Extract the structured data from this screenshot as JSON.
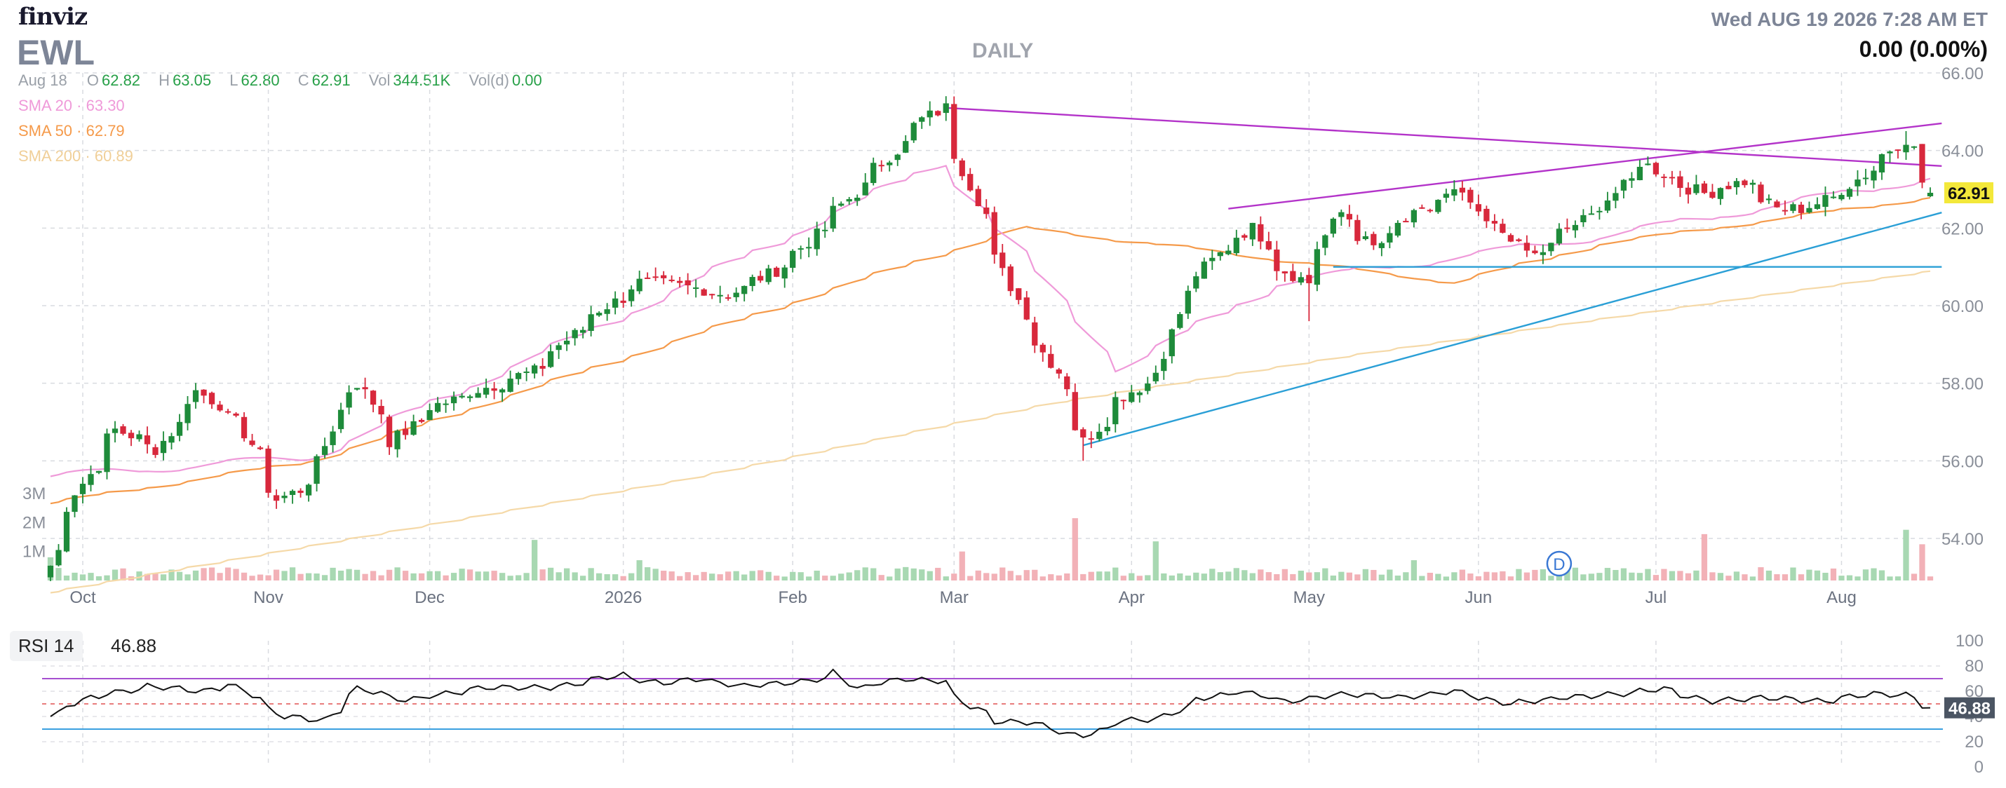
{
  "header": {
    "logo": "finviz",
    "ticker": "EWL",
    "period": "DAILY",
    "datetime": "Wed AUG 19 2026 7:28 AM ET",
    "change": "0.00 (0.00%)"
  },
  "ohlc": {
    "date": "Aug 18",
    "open_label": "O",
    "open": "62.82",
    "high_label": "H",
    "high": "63.05",
    "low_label": "L",
    "low": "62.80",
    "close_label": "C",
    "close": "62.91",
    "vol_label": "Vol",
    "vol": "344.51K",
    "vold_label": "Vol(d)",
    "vold": "0.00"
  },
  "indicators": [
    {
      "label": "SMA 20",
      "value": "63.30",
      "color": "#ef9ad9"
    },
    {
      "label": "SMA 50",
      "value": "62.79",
      "color": "#f59a4a"
    },
    {
      "label": "SMA 200",
      "value": "60.89",
      "color": "#f5d9a8"
    }
  ],
  "last_price_tag": "62.91",
  "rsi": {
    "label": "RSI 14",
    "value": "46.88",
    "tag": "46.88",
    "overbought": 70,
    "oversold": 30,
    "midline": 50
  },
  "volume_axis": [
    "3M",
    "2M",
    "1M"
  ],
  "dividend_marker": {
    "label": "D",
    "date": "Jun 15"
  },
  "colors": {
    "up": "#1e8b3a",
    "down": "#d8283c",
    "up_volume": "#a8d8b2",
    "down_volume": "#f2b1b7",
    "sma20": "#ef9ad9",
    "sma50": "#f59a4a",
    "sma200": "#f5d9a8",
    "trendline_purple": "#b333c9",
    "trendline_blue": "#2a9fd6",
    "rsi_line": "#111111",
    "rsi_upper": "#a64fd0",
    "rsi_lower": "#3aa0e0",
    "rsi_mid": "#e05050",
    "grid": "#d9dbe0",
    "price_tag": "#f3e83a"
  },
  "chart_data": [
    {
      "type": "candlestick",
      "title": "",
      "y_ticks": [
        "66.00",
        "64.00",
        "62.00",
        "60.00",
        "58.00",
        "56.00",
        "54.00"
      ],
      "ylim": [
        53.5,
        66.0
      ],
      "x_ticks": [
        "Oct",
        "Nov",
        "Dec",
        "2026",
        "Feb",
        "Mar",
        "Apr",
        "May",
        "Jun",
        "Jul",
        "Aug"
      ],
      "x_tick_dates": [
        "2025-10-01",
        "2025-11-03",
        "2025-12-01",
        "2026-01-02",
        "2026-02-02",
        "2026-03-02",
        "2026-04-01",
        "2026-05-01",
        "2026-06-01",
        "2026-07-01",
        "2026-08-03"
      ],
      "close_anchors": [
        [
          "2025-09-25",
          53.3
        ],
        [
          "2025-09-30",
          55.2
        ],
        [
          "2025-10-07",
          56.8
        ],
        [
          "2025-10-14",
          56.3
        ],
        [
          "2025-10-21",
          57.8
        ],
        [
          "2025-10-28",
          57.0
        ],
        [
          "2025-11-04",
          55.0
        ],
        [
          "2025-11-10",
          55.5
        ],
        [
          "2025-11-14",
          57.3
        ],
        [
          "2025-11-18",
          58.0
        ],
        [
          "2025-11-24",
          56.5
        ],
        [
          "2025-12-01",
          57.4
        ],
        [
          "2025-12-10",
          57.9
        ],
        [
          "2025-12-18",
          58.3
        ],
        [
          "2025-12-29",
          59.8
        ],
        [
          "2026-01-06",
          60.6
        ],
        [
          "2026-01-13",
          60.5
        ],
        [
          "2026-01-21",
          60.3
        ],
        [
          "2026-01-28",
          60.8
        ],
        [
          "2026-02-03",
          61.5
        ],
        [
          "2026-02-10",
          62.6
        ],
        [
          "2026-02-17",
          63.7
        ],
        [
          "2026-02-24",
          64.8
        ],
        [
          "2026-02-27",
          65.1
        ],
        [
          "2026-03-03",
          63.5
        ],
        [
          "2026-03-09",
          61.2
        ],
        [
          "2026-03-13",
          59.8
        ],
        [
          "2026-03-19",
          58.3
        ],
        [
          "2026-03-24",
          56.5
        ],
        [
          "2026-03-30",
          57.6
        ],
        [
          "2026-04-06",
          58.3
        ],
        [
          "2026-04-10",
          60.3
        ],
        [
          "2026-04-17",
          61.5
        ],
        [
          "2026-04-22",
          62.0
        ],
        [
          "2026-04-27",
          61.0
        ],
        [
          "2026-05-01",
          60.6
        ],
        [
          "2026-05-07",
          62.4
        ],
        [
          "2026-05-13",
          61.5
        ],
        [
          "2026-05-20",
          62.3
        ],
        [
          "2026-05-27",
          62.9
        ],
        [
          "2026-06-03",
          62.0
        ],
        [
          "2026-06-10",
          61.3
        ],
        [
          "2026-06-16",
          62.0
        ],
        [
          "2026-06-22",
          62.6
        ],
        [
          "2026-06-29",
          63.7
        ],
        [
          "2026-07-03",
          63.3
        ],
        [
          "2026-07-09",
          62.9
        ],
        [
          "2026-07-16",
          63.2
        ],
        [
          "2026-07-22",
          62.5
        ],
        [
          "2026-07-27",
          62.5
        ],
        [
          "2026-08-03",
          63.0
        ],
        [
          "2026-08-10",
          63.9
        ],
        [
          "2026-08-13",
          64.3
        ],
        [
          "2026-08-18",
          62.91
        ]
      ],
      "lows": [
        [
          "2025-09-25",
          52.9
        ],
        [
          "2026-03-24",
          56.0
        ],
        [
          "2026-05-01",
          59.6
        ]
      ],
      "highs": [
        [
          "2026-02-27",
          65.4
        ],
        [
          "2026-08-13",
          64.5
        ]
      ],
      "last": {
        "date": "2026-08-18",
        "open": 62.82,
        "high": 63.05,
        "low": 62.8,
        "close": 62.91
      },
      "series": [
        {
          "name": "SMA 20",
          "last": 63.3
        },
        {
          "name": "SMA 50",
          "last": 62.79
        },
        {
          "name": "SMA 200",
          "last": 60.89
        }
      ],
      "sma50_anchors": [
        [
          "2025-09-25",
          54.9
        ],
        [
          "2025-11-10",
          56.0
        ],
        [
          "2025-12-29",
          58.4
        ],
        [
          "2026-02-20",
          61.0
        ],
        [
          "2026-03-13",
          62.0
        ],
        [
          "2026-04-10",
          61.5
        ],
        [
          "2026-05-27",
          60.6
        ],
        [
          "2026-06-22",
          61.6
        ],
        [
          "2026-08-18",
          62.79
        ]
      ],
      "sma20_anchors": [
        [
          "2025-09-25",
          55.6
        ],
        [
          "2025-11-10",
          56.1
        ],
        [
          "2025-12-29",
          59.4
        ],
        [
          "2026-02-27",
          63.7
        ],
        [
          "2026-03-30",
          58.4
        ],
        [
          "2026-04-27",
          60.6
        ],
        [
          "2026-06-22",
          61.8
        ],
        [
          "2026-08-18",
          63.3
        ]
      ],
      "sma200_anchors": [
        [
          "2025-09-25",
          52.6
        ],
        [
          "2026-01-13",
          55.5
        ],
        [
          "2026-03-19",
          57.5
        ],
        [
          "2026-05-13",
          58.8
        ],
        [
          "2026-08-18",
          60.89
        ]
      ],
      "trendlines": [
        {
          "color": "purple",
          "from": [
            "2026-02-27",
            65.1
          ],
          "to": [
            "2026-08-20",
            63.6
          ]
        },
        {
          "color": "purple",
          "from": [
            "2026-04-17",
            62.5
          ],
          "to": [
            "2026-08-20",
            64.7
          ]
        },
        {
          "color": "blue",
          "from": [
            "2026-03-24",
            56.4
          ],
          "to": [
            "2026-08-20",
            62.4
          ]
        },
        {
          "color": "blue",
          "from": [
            "2026-05-06",
            61.0
          ],
          "to": [
            "2026-08-20",
            61.0
          ]
        }
      ]
    },
    {
      "type": "bar",
      "title": "",
      "ylabel": "",
      "y_ticks": [
        "3M",
        "2M",
        "1M"
      ],
      "ylim": [
        0,
        3500000
      ],
      "spikes": [
        [
          "2025-09-25",
          800000
        ],
        [
          "2025-12-18",
          1400000
        ],
        [
          "2026-01-06",
          700000
        ],
        [
          "2026-03-03",
          1000000
        ],
        [
          "2026-03-23",
          2150000
        ],
        [
          "2026-04-06",
          1350000
        ],
        [
          "2026-05-20",
          700000
        ],
        [
          "2026-07-09",
          1600000
        ],
        [
          "2026-08-13",
          1750000
        ],
        [
          "2026-08-17",
          1250000
        ]
      ],
      "typical_volume": 300000
    },
    {
      "type": "line",
      "title": "",
      "y_ticks": [
        "100",
        "80",
        "60",
        "40",
        "20",
        "0"
      ],
      "ylim": [
        0,
        100
      ],
      "anchors": [
        [
          "2025-09-25",
          40
        ],
        [
          "2025-10-02",
          55
        ],
        [
          "2025-10-13",
          64
        ],
        [
          "2025-10-22",
          60
        ],
        [
          "2025-10-27",
          66
        ],
        [
          "2025-11-05",
          40
        ],
        [
          "2025-11-12",
          37
        ],
        [
          "2025-11-18",
          62
        ],
        [
          "2025-11-26",
          53
        ],
        [
          "2025-12-10",
          63
        ],
        [
          "2025-12-22",
          63
        ],
        [
          "2026-01-02",
          73
        ],
        [
          "2026-01-09",
          66
        ],
        [
          "2026-01-16",
          70
        ],
        [
          "2026-01-23",
          64
        ],
        [
          "2026-02-04",
          68
        ],
        [
          "2026-02-09",
          75
        ],
        [
          "2026-02-12",
          62
        ],
        [
          "2026-02-20",
          70
        ],
        [
          "2026-02-27",
          68
        ],
        [
          "2026-03-04",
          48
        ],
        [
          "2026-03-09",
          36
        ],
        [
          "2026-03-16",
          35
        ],
        [
          "2026-03-20",
          26
        ],
        [
          "2026-03-24",
          25
        ],
        [
          "2026-03-31",
          37
        ],
        [
          "2026-04-06",
          38
        ],
        [
          "2026-04-13",
          54
        ],
        [
          "2026-04-20",
          60
        ],
        [
          "2026-04-28",
          52
        ],
        [
          "2026-05-08",
          58
        ],
        [
          "2026-05-18",
          55
        ],
        [
          "2026-05-27",
          60
        ],
        [
          "2026-06-05",
          50
        ],
        [
          "2026-06-15",
          55
        ],
        [
          "2026-06-25",
          58
        ],
        [
          "2026-07-02",
          62
        ],
        [
          "2026-07-10",
          52
        ],
        [
          "2026-07-20",
          55
        ],
        [
          "2026-07-30",
          52
        ],
        [
          "2026-08-07",
          58
        ],
        [
          "2026-08-13",
          57
        ],
        [
          "2026-08-18",
          46.88
        ]
      ]
    }
  ]
}
